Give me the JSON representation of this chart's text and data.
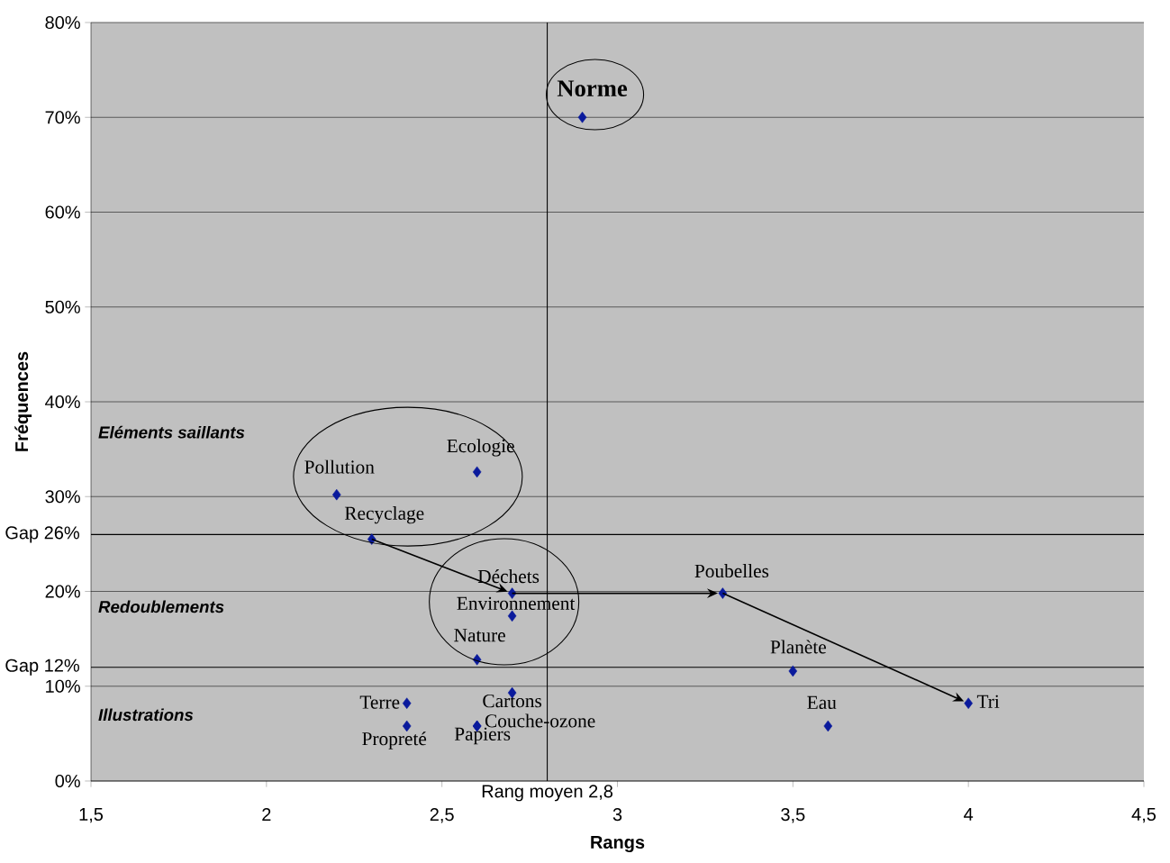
{
  "chart_data": {
    "type": "scatter",
    "xlabel": "Rangs",
    "ylabel": "Fréquences",
    "x": [
      2.9,
      2.2,
      2.6,
      2.3,
      2.7,
      2.7,
      2.6,
      2.7,
      2.4,
      2.4,
      2.6,
      2.6,
      3.3,
      3.5,
      3.6,
      4.0
    ],
    "values": [
      70,
      30.2,
      32.6,
      25.5,
      19.8,
      17.4,
      12.8,
      9.3,
      8.2,
      5.8,
      5.8,
      5.8,
      19.8,
      11.6,
      5.8,
      8.2
    ],
    "color": "#0a1a9c",
    "marker": "diamond",
    "grid": "y",
    "xlim": [
      1.5,
      4.5
    ],
    "ylim": [
      0,
      80
    ],
    "xticks": [
      {
        "value": 1.5,
        "label": "1,5"
      },
      2,
      {
        "value": 2.5,
        "label": "2,5"
      },
      3,
      {
        "value": 3.5,
        "label": "3,5"
      },
      4,
      {
        "value": 4.5,
        "label": "4,5"
      }
    ],
    "yticks": [
      {
        "value": 0,
        "label": "0%"
      },
      {
        "value": 10,
        "label": "10%"
      },
      {
        "value": 20,
        "label": "20%"
      },
      {
        "value": 30,
        "label": "30%"
      },
      {
        "value": 40,
        "label": "40%"
      },
      {
        "value": 50,
        "label": "50%"
      },
      {
        "value": 60,
        "label": "60%"
      },
      {
        "value": 70,
        "label": "70%"
      },
      {
        "value": 80,
        "label": "80%"
      }
    ],
    "ref_lines": [
      {
        "axis": "y",
        "value": 26,
        "label": "Gap 26%"
      },
      {
        "axis": "y",
        "value": 12,
        "label": "Gap 12%"
      },
      {
        "axis": "x",
        "value": 2.8,
        "label": "Rang moyen 2,8"
      }
    ],
    "annotations": [
      {
        "text": "Norme",
        "x": 2.9,
        "y": 70
      },
      {
        "text": "Pollution",
        "x": 2.2,
        "y": 30.2
      },
      {
        "text": "Ecologie",
        "x": 2.6,
        "y": 32.6
      },
      {
        "text": "Recyclage",
        "x": 2.3,
        "y": 25.5
      },
      {
        "text": "Déchets",
        "x": 2.7,
        "y": 19.8
      },
      {
        "text": "Environnement",
        "x": 2.7,
        "y": 17.4
      },
      {
        "text": "Nature",
        "x": 2.6,
        "y": 12.8
      },
      {
        "text": "Cartons",
        "x": 2.7,
        "y": 9.3
      },
      {
        "text": "Terre",
        "x": 2.4,
        "y": 8.2
      },
      {
        "text": "Propreté",
        "x": 2.4,
        "y": 5.8
      },
      {
        "text": "Papiers",
        "x": 2.6,
        "y": 5.8
      },
      {
        "text": "Couche-ozone",
        "x": 2.6,
        "y": 5.8
      },
      {
        "text": "Poubelles",
        "x": 3.3,
        "y": 19.8
      },
      {
        "text": "Planète",
        "x": 3.5,
        "y": 11.6
      },
      {
        "text": "Eau",
        "x": 3.6,
        "y": 5.8
      },
      {
        "text": "Tri",
        "x": 4.0,
        "y": 8.2
      },
      "Eléments saillants",
      "Redoublements",
      "Illustrations"
    ]
  }
}
